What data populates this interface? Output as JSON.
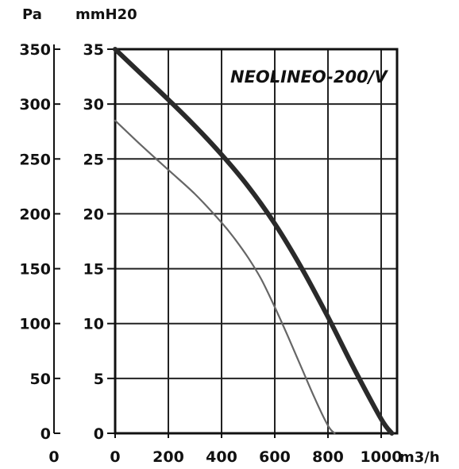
{
  "chart_data": {
    "type": "line",
    "title": "NEOLINEO-200/V",
    "xlabel": "m3/h",
    "ylabel_left": "Pa",
    "ylabel_right": "mmH20",
    "xlim": [
      0,
      1050
    ],
    "ylim": [
      0,
      35
    ],
    "x_ticks": [
      "0",
      "200",
      "400",
      "600",
      "800",
      "1000"
    ],
    "y_ticks_mmh2o": [
      "0",
      "5",
      "10",
      "15",
      "20",
      "25",
      "30",
      "35"
    ],
    "y_ticks_pa": [
      "0",
      "50",
      "100",
      "150",
      "200",
      "250",
      "300",
      "350"
    ],
    "pa_axis_origin_label": "0",
    "grid": true,
    "series": [
      {
        "style": "thick",
        "x": [
          0,
          100,
          200,
          300,
          400,
          500,
          600,
          700,
          800,
          900,
          1000,
          1040
        ],
        "y": [
          35.0,
          32.7,
          30.4,
          28.0,
          25.4,
          22.5,
          19.1,
          15.1,
          10.6,
          5.8,
          1.3,
          0
        ]
      },
      {
        "style": "thin",
        "x": [
          0,
          100,
          200,
          300,
          400,
          450,
          500,
          550,
          600,
          650,
          700,
          750,
          800,
          825
        ],
        "y": [
          28.5,
          26.2,
          24.0,
          21.8,
          19.2,
          17.7,
          16.0,
          14.0,
          11.5,
          8.8,
          6.0,
          3.2,
          0.7,
          0
        ]
      }
    ]
  }
}
